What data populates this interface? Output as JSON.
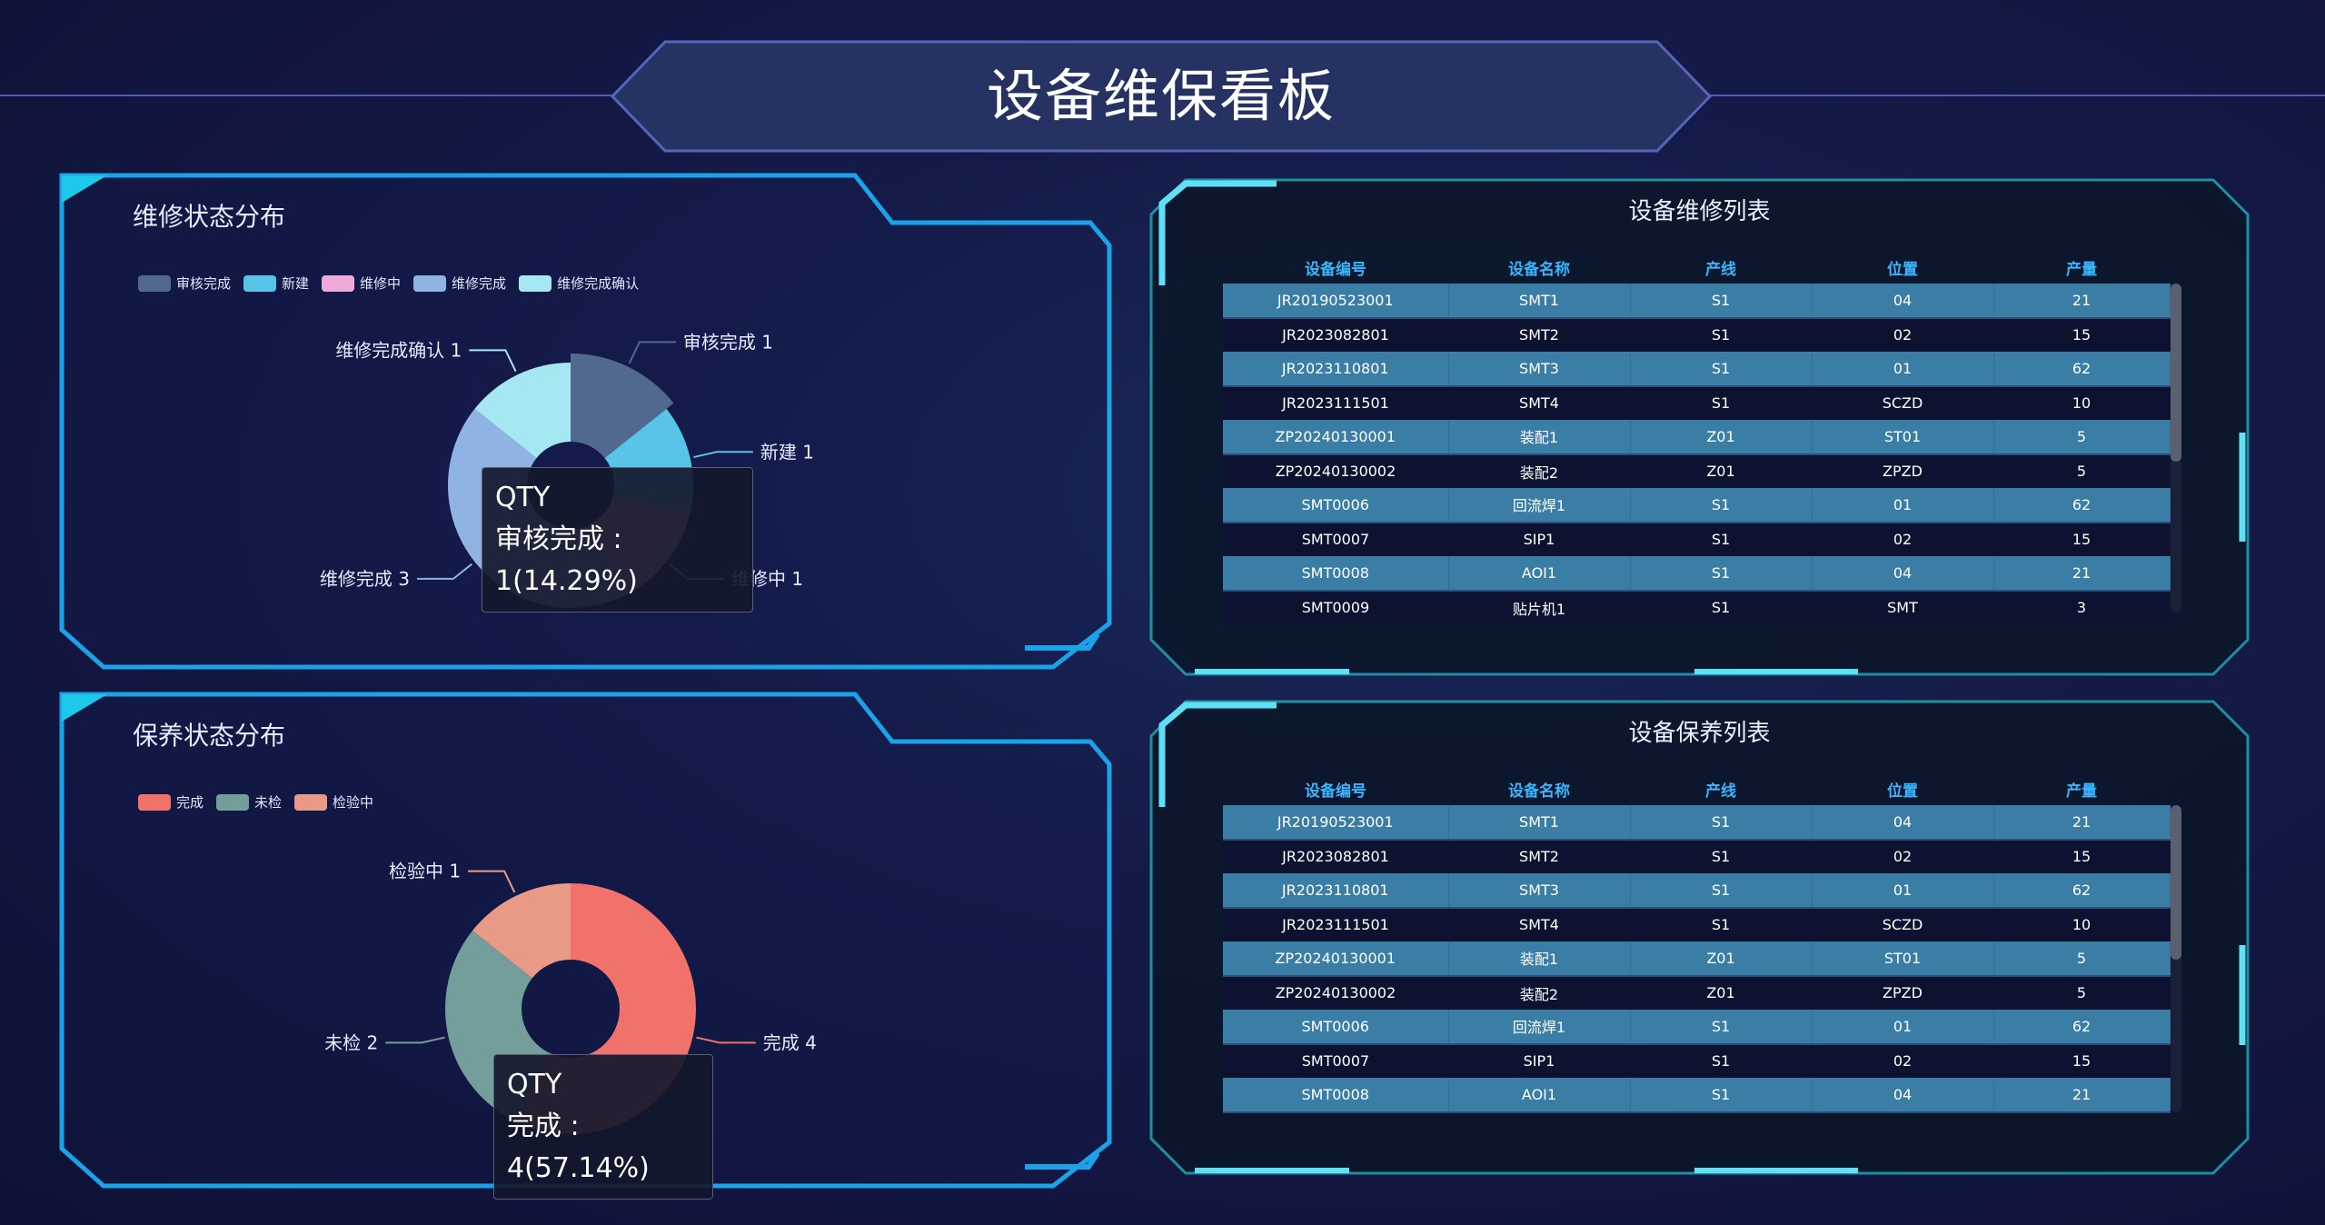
{
  "header": {
    "title": "设备维保看板"
  },
  "repair_status": {
    "title": "维修状态分布",
    "series_name": "QTY",
    "tooltip": {
      "name": "QTY",
      "text": "审核完成 : 1(14.29%)"
    },
    "chart_data": {
      "type": "pie",
      "donut": true,
      "categories": [
        "审核完成",
        "新建",
        "维修中",
        "维修完成",
        "维修完成确认"
      ],
      "values": [
        1,
        1,
        1,
        3,
        1
      ],
      "colors": [
        "#51698f",
        "#58c4e8",
        "#eeaad8",
        "#8fb4e3",
        "#a6e8f2"
      ],
      "labels": [
        "审核完成 1",
        "新建 1",
        "维修中 1",
        "维修完成 3",
        "维修完成确认 1"
      ],
      "legend": "top-left"
    }
  },
  "maintain_status": {
    "title": "保养状态分布",
    "tooltip": {
      "name": "QTY",
      "text": "完成 : 4(57.14%)"
    },
    "chart_data": {
      "type": "pie",
      "donut": true,
      "categories": [
        "完成",
        "未检",
        "检验中"
      ],
      "values": [
        4,
        2,
        1
      ],
      "colors": [
        "#f0726b",
        "#739e9c",
        "#e89a86"
      ],
      "labels": [
        "完成 4",
        "未检 2",
        "检验中 1"
      ],
      "legend": "top-left"
    }
  },
  "repair_list": {
    "title": "设备维修列表",
    "columns": [
      "设备编号",
      "设备名称",
      "产线",
      "位置",
      "产量"
    ],
    "rows": [
      [
        "JR20190523001",
        "SMT1",
        "S1",
        "04",
        "21"
      ],
      [
        "JR2023082801",
        "SMT2",
        "S1",
        "02",
        "15"
      ],
      [
        "JR2023110801",
        "SMT3",
        "S1",
        "01",
        "62"
      ],
      [
        "JR2023111501",
        "SMT4",
        "S1",
        "SCZD",
        "10"
      ],
      [
        "ZP20240130001",
        "装配1",
        "Z01",
        "ST01",
        "5"
      ],
      [
        "ZP20240130002",
        "装配2",
        "Z01",
        "ZPZD",
        "5"
      ],
      [
        "SMT0006",
        "回流焊1",
        "S1",
        "01",
        "62"
      ],
      [
        "SMT0007",
        "SIP1",
        "S1",
        "02",
        "15"
      ],
      [
        "SMT0008",
        "AOI1",
        "S1",
        "04",
        "21"
      ],
      [
        "SMT0009",
        "贴片机1",
        "S1",
        "SMT",
        "3"
      ]
    ]
  },
  "maintain_list": {
    "title": "设备保养列表",
    "columns": [
      "设备编号",
      "设备名称",
      "产线",
      "位置",
      "产量"
    ],
    "rows": [
      [
        "JR20190523001",
        "SMT1",
        "S1",
        "04",
        "21"
      ],
      [
        "JR2023082801",
        "SMT2",
        "S1",
        "02",
        "15"
      ],
      [
        "JR2023110801",
        "SMT3",
        "S1",
        "01",
        "62"
      ],
      [
        "JR2023111501",
        "SMT4",
        "S1",
        "SCZD",
        "10"
      ],
      [
        "ZP20240130001",
        "装配1",
        "Z01",
        "ST01",
        "5"
      ],
      [
        "ZP20240130002",
        "装配2",
        "Z01",
        "ZPZD",
        "5"
      ],
      [
        "SMT0006",
        "回流焊1",
        "S1",
        "01",
        "62"
      ],
      [
        "SMT0007",
        "SIP1",
        "S1",
        "02",
        "15"
      ],
      [
        "SMT0008",
        "AOI1",
        "S1",
        "04",
        "21"
      ]
    ]
  }
}
